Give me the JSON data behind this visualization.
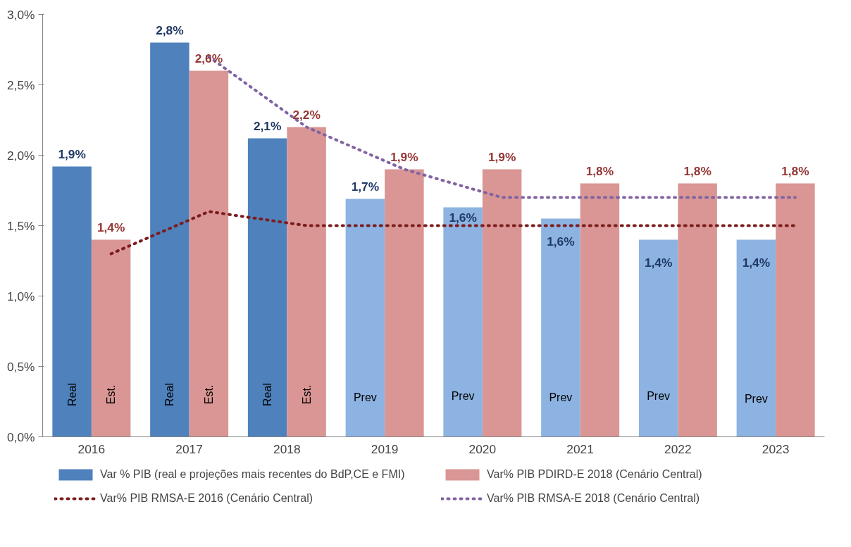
{
  "chart_data": {
    "type": "bar",
    "categories": [
      "2016",
      "2017",
      "2018",
      "2019",
      "2020",
      "2021",
      "2022",
      "2023"
    ],
    "series": [
      {
        "name": "Var % PIB (real e projeções mais recentes do BdP,CE e FMI)",
        "color": "#4f81bd",
        "colors": [
          "#4f81bd",
          "#4f81bd",
          "#4f81bd",
          "#8db3e2",
          "#8db3e2",
          "#8db3e2",
          "#8db3e2",
          "#8db3e2"
        ],
        "values": [
          1.92,
          2.8,
          2.12,
          1.69,
          1.63,
          1.55,
          1.4,
          1.4
        ],
        "value_labels": [
          "1,9%",
          "2,8%",
          "2,1%",
          "1,7%",
          "1,6%",
          "1,6%",
          "1,4%",
          "1,4%"
        ]
      },
      {
        "name": "Var% PIB PDIRD-E 2018 (Cenário Central)",
        "color": "#d99694",
        "values": [
          1.4,
          2.6,
          2.2,
          1.9,
          1.9,
          1.8,
          1.8,
          1.8
        ],
        "value_labels": [
          "1,4%",
          "2,6%",
          "2,2%",
          "1,9%",
          "1,9%",
          "1,8%",
          "1,8%",
          "1,8%"
        ]
      },
      {
        "name": "Var% PIB RMSA-E 2016 (Cenário Central)",
        "type": "line",
        "line_style": "dotted",
        "color": "#7b1c1c",
        "values": [
          1.3,
          1.6,
          1.5,
          1.5,
          1.5,
          1.5,
          1.5,
          1.5
        ]
      },
      {
        "name": "Var% PIB RMSA-E 2018 (Cenário Central)",
        "type": "line",
        "line_style": "dotted",
        "color": "#8064a2",
        "values": [
          null,
          2.7,
          2.2,
          1.9,
          1.7,
          1.7,
          1.7,
          1.7
        ]
      }
    ],
    "ylim": [
      0,
      3
    ],
    "yticks": [
      {
        "value": 0,
        "label": "0,0%"
      },
      {
        "value": 0.5,
        "label": "0,5%"
      },
      {
        "value": 1,
        "label": "1,0%"
      },
      {
        "value": 1.5,
        "label": "1,5%"
      },
      {
        "value": 2,
        "label": "2,0%"
      },
      {
        "value": 2.5,
        "label": "2,5%"
      },
      {
        "value": 3,
        "label": "3,0%"
      }
    ],
    "annotations": [
      {
        "text": "Real",
        "x": "2016",
        "y": 0.3
      },
      {
        "text": "Est.",
        "x": "2016",
        "y": 0.3
      },
      {
        "text": "Real",
        "x": "2017",
        "y": 0.3
      },
      {
        "text": "Est.",
        "x": "2017",
        "y": 0.3
      },
      {
        "text": "Real",
        "x": "2018",
        "y": 0.3
      },
      {
        "text": "Est.",
        "x": "2018",
        "y": 0.3
      },
      {
        "text": "Prev",
        "x": "2019",
        "y": 0.28
      },
      {
        "text": "Prev",
        "x": "2020",
        "y": 0.29
      },
      {
        "text": "Prev",
        "x": "2021",
        "y": 0.28
      },
      {
        "text": "Prev",
        "x": "2022",
        "y": 0.29
      },
      {
        "text": "Prev",
        "x": "2023",
        "y": 0.27
      }
    ],
    "grid": false,
    "legend": "bottom",
    "marker": "none"
  }
}
